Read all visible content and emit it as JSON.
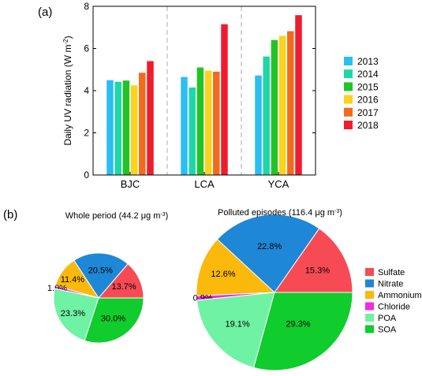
{
  "panel_a_label": "(a)",
  "panel_b_label": "(b)",
  "chart_data": [
    {
      "type": "bar",
      "title": "",
      "xlabel": "",
      "ylabel": "Daily UV radiation (W m",
      "ylabel_sup": "-2",
      "ylabel_end": ")",
      "ylim": [
        0,
        8
      ],
      "yticks": [
        "0",
        "2",
        "4",
        "6",
        "8"
      ],
      "categories": [
        "BJC",
        "LCA",
        "YCA"
      ],
      "legend_position": "right",
      "series": [
        {
          "name": "2013",
          "color": "#2bbef0",
          "values": [
            4.5,
            4.65,
            4.72
          ]
        },
        {
          "name": "2014",
          "color": "#1fd6a6",
          "values": [
            4.42,
            4.15,
            5.62
          ]
        },
        {
          "name": "2015",
          "color": "#22c425",
          "values": [
            4.48,
            5.1,
            6.4
          ]
        },
        {
          "name": "2016",
          "color": "#f9d31c",
          "values": [
            4.25,
            4.95,
            6.6
          ]
        },
        {
          "name": "2017",
          "color": "#f26b1d",
          "values": [
            4.85,
            4.9,
            6.82
          ]
        },
        {
          "name": "2018",
          "color": "#ee1c2e",
          "values": [
            5.4,
            7.15,
            7.58
          ]
        }
      ]
    },
    {
      "type": "pie",
      "title": "Whole period (44.2 μg m",
      "title_sup": "-3",
      "title_end": ")",
      "slices": [
        {
          "name": "Sulfate",
          "value": 13.7,
          "label": "13.7%",
          "color": "#f64b55"
        },
        {
          "name": "Nitrate",
          "value": 20.5,
          "label": "20.5%",
          "color": "#1e87d6"
        },
        {
          "name": "Ammonium",
          "value": 11.4,
          "label": "11.4%",
          "color": "#fbb90c"
        },
        {
          "name": "Chloride",
          "value": 1.0,
          "label": "1.0%",
          "color": "#f02ce6"
        },
        {
          "name": "POA",
          "value": 23.3,
          "label": "23.3%",
          "color": "#6ff2a4"
        },
        {
          "name": "SOA",
          "value": 30.0,
          "label": "30.0%",
          "color": "#10cc2c"
        }
      ]
    },
    {
      "type": "pie",
      "title": "Polluted episodes (116.4 μg m",
      "title_sup": "-3",
      "title_end": ")",
      "slices": [
        {
          "name": "Sulfate",
          "value": 15.3,
          "label": "15.3%",
          "color": "#f64b55"
        },
        {
          "name": "Nitrate",
          "value": 22.8,
          "label": "22.8%",
          "color": "#1e87d6"
        },
        {
          "name": "Ammonium",
          "value": 12.6,
          "label": "12.6%",
          "color": "#fbb90c"
        },
        {
          "name": "Chloride",
          "value": 0.9,
          "label": "0.9%",
          "color": "#f02ce6"
        },
        {
          "name": "POA",
          "value": 19.1,
          "label": "19.1%",
          "color": "#6ff2a4"
        },
        {
          "name": "SOA",
          "value": 29.3,
          "label": "29.3%",
          "color": "#10cc2c"
        }
      ]
    }
  ],
  "pie_legend": [
    {
      "name": "Sulfate",
      "color": "#f64b55"
    },
    {
      "name": "Nitrate",
      "color": "#1e87d6"
    },
    {
      "name": "Ammonium",
      "color": "#fbb90c"
    },
    {
      "name": "Chloride",
      "color": "#f02ce6"
    },
    {
      "name": "POA",
      "color": "#6ff2a4"
    },
    {
      "name": "SOA",
      "color": "#10cc2c"
    }
  ]
}
